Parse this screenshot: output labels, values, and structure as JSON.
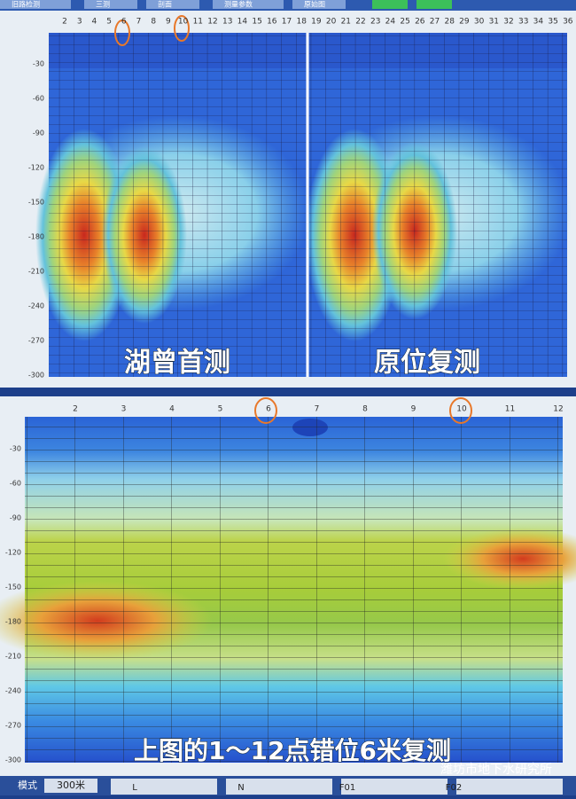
{
  "tabs": [
    "旧路检测",
    "三测",
    "剖面",
    "测量参数",
    "原始图"
  ],
  "top_panel": {
    "x_ticks": [
      2,
      3,
      4,
      5,
      6,
      7,
      8,
      9,
      10,
      11,
      12,
      13,
      14,
      15,
      16,
      17,
      18,
      19,
      20,
      21,
      22,
      23,
      24,
      25,
      26,
      27,
      28,
      29,
      30,
      31,
      32,
      33,
      34,
      35,
      36
    ],
    "y_ticks": [
      -30,
      -60,
      -90,
      -120,
      -150,
      -180,
      -210,
      -240,
      -270,
      -300
    ],
    "left_caption": "湖曾首测",
    "right_caption": "原位复测"
  },
  "bottom_panel": {
    "x_ticks": [
      2,
      3,
      4,
      5,
      6,
      7,
      8,
      9,
      10,
      11,
      12
    ],
    "y_ticks": [
      -30,
      -60,
      -90,
      -120,
      -150,
      -180,
      -210,
      -240,
      -270,
      -300
    ],
    "caption": "上图的1～12点错位6米复测"
  },
  "watermark": "潍坊市地下水研究所",
  "status_bar": {
    "mode_label": "模式",
    "mode_value": "300米",
    "buttons": [
      "L",
      "N",
      "F01",
      "F02"
    ]
  }
}
